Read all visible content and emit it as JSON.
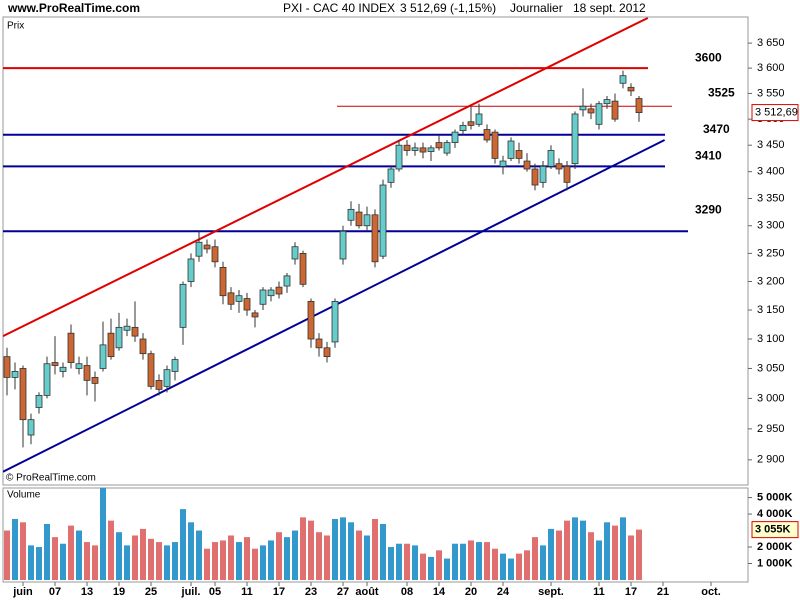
{
  "site": "www.ProRealTime.com",
  "chart_data": {
    "type": "candlestick",
    "title": "PXI - CAC 40 INDEX",
    "price_text": "3 512,69 (-1,15%)",
    "period": "Journalier",
    "date": "18 sept. 2012",
    "panel_label": "Prix",
    "watermark": "© ProRealTime.com",
    "price_marker_label": "3 512,69",
    "log_scale": true,
    "ylim": [
      2860,
      3703
    ],
    "yticks": [
      {
        "value": 2900,
        "label": "2 900"
      },
      {
        "value": 2950,
        "label": "2 950"
      },
      {
        "value": 3000,
        "label": "3 000"
      },
      {
        "value": 3050,
        "label": "3 050"
      },
      {
        "value": 3100,
        "label": "3 100"
      },
      {
        "value": 3150,
        "label": "3 150"
      },
      {
        "value": 3200,
        "label": "3 200"
      },
      {
        "value": 3250,
        "label": "3 250"
      },
      {
        "value": 3300,
        "label": "3 300"
      },
      {
        "value": 3350,
        "label": "3 350"
      },
      {
        "value": 3400,
        "label": "3 400"
      },
      {
        "value": 3450,
        "label": "3 450"
      },
      {
        "value": 3500,
        "label": "3 500"
      },
      {
        "value": 3550,
        "label": "3 550"
      },
      {
        "value": 3600,
        "label": "3 600"
      },
      {
        "value": 3650,
        "label": "3 650"
      }
    ],
    "xlim": [
      -0.5,
      92.625
    ],
    "xticks": [
      {
        "value": 2,
        "label": "juin"
      },
      {
        "value": 6,
        "label": "07"
      },
      {
        "value": 10,
        "label": "13"
      },
      {
        "value": 14,
        "label": "19"
      },
      {
        "value": 18,
        "label": "25"
      },
      {
        "value": 23,
        "label": "juil."
      },
      {
        "value": 26,
        "label": "05"
      },
      {
        "value": 30,
        "label": "11"
      },
      {
        "value": 34,
        "label": "17"
      },
      {
        "value": 38,
        "label": "23"
      },
      {
        "value": 42,
        "label": "27"
      },
      {
        "value": 45,
        "label": "août"
      },
      {
        "value": 50,
        "label": "08"
      },
      {
        "value": 54,
        "label": "14"
      },
      {
        "value": 58,
        "label": "20"
      },
      {
        "value": 62,
        "label": "24"
      },
      {
        "value": 68,
        "label": "sept."
      },
      {
        "value": 74,
        "label": "11"
      },
      {
        "value": 78,
        "label": "17"
      },
      {
        "value": 82,
        "label": "21"
      },
      {
        "value": 88,
        "label": "oct."
      }
    ],
    "up_color": "#66cccc",
    "down_color": "#cc6633",
    "open": [
      3070,
      3035,
      3050,
      2940,
      2985,
      3005,
      3060,
      3045,
      3110,
      3050,
      3055,
      3035,
      3050,
      3110,
      3085,
      3115,
      3120,
      3100,
      3075,
      3030,
      3020,
      3045,
      3120,
      3200,
      3245,
      3265,
      3262,
      3225,
      3180,
      3165,
      3170,
      3145,
      3160,
      3175,
      3190,
      3192,
      3240,
      3250,
      3165,
      3100,
      3085,
      3095,
      3240,
      3310,
      3325,
      3300,
      3320,
      3245,
      3380,
      3405,
      3450,
      3440,
      3445,
      3438,
      3455,
      3435,
      3455,
      3478,
      3495,
      3490,
      3480,
      3475,
      3410,
      3425,
      3440,
      3420,
      3405,
      3380,
      3410,
      3415,
      3410,
      3415,
      3518,
      3520,
      3490,
      3530,
      3535,
      3570,
      3562,
      3540
    ],
    "high": [
      3085,
      3060,
      3055,
      2975,
      3010,
      3070,
      3105,
      3060,
      3125,
      3070,
      3070,
      3045,
      3130,
      3135,
      3145,
      3135,
      3165,
      3110,
      3080,
      3040,
      3055,
      3070,
      3200,
      3250,
      3290,
      3275,
      3275,
      3235,
      3190,
      3185,
      3180,
      3150,
      3190,
      3190,
      3200,
      3215,
      3270,
      3255,
      3170,
      3110,
      3095,
      3170,
      3300,
      3345,
      3340,
      3335,
      3330,
      3385,
      3410,
      3460,
      3460,
      3455,
      3455,
      3450,
      3470,
      3460,
      3480,
      3495,
      3525,
      3530,
      3490,
      3480,
      3430,
      3465,
      3455,
      3435,
      3415,
      3420,
      3450,
      3425,
      3420,
      3515,
      3560,
      3530,
      3535,
      3545,
      3550,
      3595,
      3570,
      3545
    ],
    "low": [
      3005,
      3015,
      2920,
      2925,
      2975,
      3000,
      3040,
      3035,
      3050,
      3040,
      3005,
      2995,
      3045,
      3065,
      3080,
      3105,
      3095,
      3065,
      3015,
      3005,
      3010,
      3030,
      3090,
      3190,
      3235,
      3250,
      3225,
      3160,
      3150,
      3145,
      3140,
      3120,
      3150,
      3165,
      3170,
      3180,
      3230,
      3190,
      3085,
      3070,
      3060,
      3085,
      3230,
      3300,
      3295,
      3290,
      3225,
      3240,
      3370,
      3400,
      3430,
      3430,
      3425,
      3420,
      3440,
      3430,
      3445,
      3470,
      3480,
      3485,
      3455,
      3415,
      3395,
      3420,
      3415,
      3400,
      3365,
      3370,
      3405,
      3395,
      3365,
      3405,
      3505,
      3500,
      3480,
      3520,
      3495,
      3560,
      3545,
      3495
    ],
    "close": [
      3035,
      3045,
      2965,
      2965,
      3005,
      3058,
      3055,
      3052,
      3060,
      3058,
      3030,
      3025,
      3090,
      3070,
      3120,
      3122,
      3105,
      3075,
      3020,
      3015,
      3048,
      3065,
      3195,
      3240,
      3270,
      3258,
      3235,
      3175,
      3160,
      3175,
      3150,
      3138,
      3185,
      3185,
      3178,
      3210,
      3262,
      3195,
      3100,
      3085,
      3070,
      3165,
      3290,
      3330,
      3300,
      3320,
      3235,
      3375,
      3405,
      3450,
      3440,
      3445,
      3437,
      3445,
      3445,
      3455,
      3475,
      3488,
      3488,
      3510,
      3460,
      3425,
      3420,
      3458,
      3425,
      3405,
      3375,
      3410,
      3440,
      3405,
      3380,
      3510,
      3525,
      3512,
      3530,
      3538,
      3500,
      3585,
      3555,
      3512.69
    ],
    "levels": [
      {
        "value": 3600,
        "color": "#e00000",
        "line_width": 2
      },
      {
        "value": 3525,
        "color": "#cc0000",
        "line_width": 1
      },
      {
        "value": 3470,
        "color": "#000099",
        "line_width": 2
      },
      {
        "value": 3410,
        "color": "#000099",
        "line_width": 2
      },
      {
        "value": 3290,
        "color": "#000099",
        "line_width": 2
      }
    ],
    "trendlines": [
      {
        "color": "#e00000",
        "x": [
          -0.5,
          80.1
        ],
        "y": [
          3105,
          3701
        ]
      },
      {
        "color": "#000099",
        "x": [
          -0.5,
          82.2
        ],
        "y": [
          2881,
          3460
        ]
      }
    ],
    "volume": {
      "label": "Volume",
      "up_color": "#3399cc",
      "down_color": "#e07070",
      "marker_label": "3 055K",
      "ylim": [
        0,
        5580
      ],
      "yticks": [
        {
          "value": 1000,
          "label": "1 000K"
        },
        {
          "value": 2000,
          "label": "2 000K"
        },
        {
          "value": 4000,
          "label": "4 000K"
        },
        {
          "value": 5000,
          "label": "5 000K"
        }
      ],
      "values": [
        3000,
        3700,
        3500,
        2100,
        2000,
        3400,
        2600,
        2200,
        3300,
        3000,
        2300,
        2100,
        5600,
        3600,
        2900,
        2100,
        2700,
        3100,
        2500,
        2300,
        2100,
        2300,
        4300,
        3500,
        3000,
        1900,
        2300,
        2400,
        2700,
        2300,
        2600,
        1900,
        2100,
        2400,
        2900,
        2600,
        3000,
        3800,
        3600,
        2900,
        2700,
        3700,
        3800,
        3500,
        3000,
        2700,
        3700,
        3400,
        2000,
        2200,
        2200,
        2100,
        1600,
        1400,
        1800,
        1300,
        2200,
        2200,
        2400,
        2300,
        2300,
        1900,
        1600,
        1300,
        1600,
        1800,
        2600,
        2100,
        3100,
        3000,
        3600,
        3800,
        3600,
        2900,
        2400,
        3500,
        3300,
        3800,
        2700,
        3055
      ]
    }
  }
}
